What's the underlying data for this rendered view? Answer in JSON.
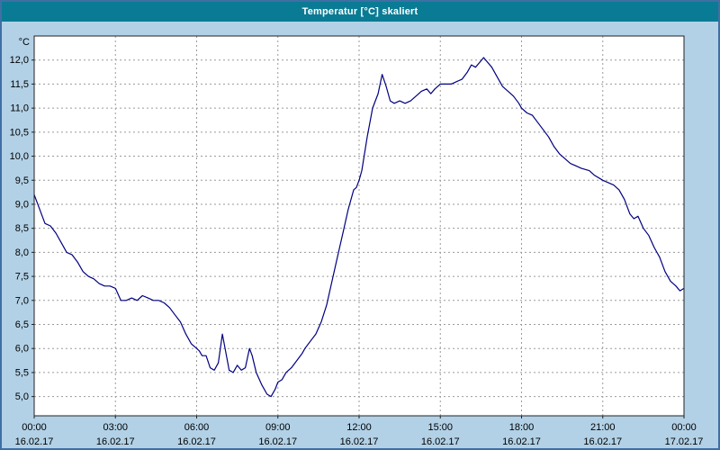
{
  "window": {
    "title": "Temperatur [°C] skaliert",
    "title_bar_color": "#0a7b94",
    "body_color": "#b2d1e6",
    "border_color": "#3f6fa5"
  },
  "chart_data": {
    "type": "line",
    "title": "Temperatur [°C] skaliert",
    "ylabel": "°C",
    "xlabel": "",
    "ylim": [
      4.6,
      12.5
    ],
    "xlim_hours": [
      0,
      24
    ],
    "grid": "dashed",
    "legend": "none",
    "line_color": "#000080",
    "plot_bg": "#ffffff",
    "grid_color": "#9a9a9a",
    "y_ticks": [
      {
        "value": 5.0,
        "label": "5,0"
      },
      {
        "value": 5.5,
        "label": "5,5"
      },
      {
        "value": 6.0,
        "label": "6,0"
      },
      {
        "value": 6.5,
        "label": "6,5"
      },
      {
        "value": 7.0,
        "label": "7,0"
      },
      {
        "value": 7.5,
        "label": "7,5"
      },
      {
        "value": 8.0,
        "label": "8,0"
      },
      {
        "value": 8.5,
        "label": "8,5"
      },
      {
        "value": 9.0,
        "label": "9,0"
      },
      {
        "value": 9.5,
        "label": "9,5"
      },
      {
        "value": 10.0,
        "label": "10,0"
      },
      {
        "value": 10.5,
        "label": "10,5"
      },
      {
        "value": 11.0,
        "label": "11,0"
      },
      {
        "value": 11.5,
        "label": "11,5"
      },
      {
        "value": 12.0,
        "label": "12,0"
      }
    ],
    "x_ticks": [
      {
        "hour": 0,
        "time": "00:00",
        "date": "16.02.17"
      },
      {
        "hour": 3,
        "time": "03:00",
        "date": "16.02.17"
      },
      {
        "hour": 6,
        "time": "06:00",
        "date": "16.02.17"
      },
      {
        "hour": 9,
        "time": "09:00",
        "date": "16.02.17"
      },
      {
        "hour": 12,
        "time": "12:00",
        "date": "16.02.17"
      },
      {
        "hour": 15,
        "time": "15:00",
        "date": "16.02.17"
      },
      {
        "hour": 18,
        "time": "18:00",
        "date": "16.02.17"
      },
      {
        "hour": 21,
        "time": "21:00",
        "date": "16.02.17"
      },
      {
        "hour": 24,
        "time": "00:00",
        "date": "17.02.17"
      }
    ],
    "series": [
      {
        "name": "Temperatur [°C] skaliert",
        "points": [
          [
            0.0,
            9.2
          ],
          [
            0.2,
            8.9
          ],
          [
            0.4,
            8.6
          ],
          [
            0.6,
            8.55
          ],
          [
            0.8,
            8.4
          ],
          [
            1.0,
            8.2
          ],
          [
            1.2,
            8.0
          ],
          [
            1.4,
            7.95
          ],
          [
            1.6,
            7.8
          ],
          [
            1.8,
            7.6
          ],
          [
            2.0,
            7.5
          ],
          [
            2.2,
            7.45
          ],
          [
            2.4,
            7.35
          ],
          [
            2.6,
            7.3
          ],
          [
            2.8,
            7.3
          ],
          [
            3.0,
            7.25
          ],
          [
            3.2,
            7.0
          ],
          [
            3.4,
            7.0
          ],
          [
            3.6,
            7.05
          ],
          [
            3.8,
            7.0
          ],
          [
            4.0,
            7.1
          ],
          [
            4.2,
            7.05
          ],
          [
            4.4,
            7.0
          ],
          [
            4.6,
            7.0
          ],
          [
            4.8,
            6.95
          ],
          [
            5.0,
            6.85
          ],
          [
            5.2,
            6.7
          ],
          [
            5.4,
            6.55
          ],
          [
            5.6,
            6.3
          ],
          [
            5.8,
            6.1
          ],
          [
            6.0,
            6.0
          ],
          [
            6.1,
            5.95
          ],
          [
            6.2,
            5.85
          ],
          [
            6.35,
            5.85
          ],
          [
            6.5,
            5.6
          ],
          [
            6.65,
            5.55
          ],
          [
            6.8,
            5.7
          ],
          [
            6.95,
            6.3
          ],
          [
            7.05,
            6.0
          ],
          [
            7.2,
            5.55
          ],
          [
            7.35,
            5.5
          ],
          [
            7.5,
            5.65
          ],
          [
            7.65,
            5.55
          ],
          [
            7.8,
            5.6
          ],
          [
            7.95,
            6.0
          ],
          [
            8.05,
            5.85
          ],
          [
            8.2,
            5.5
          ],
          [
            8.4,
            5.25
          ],
          [
            8.6,
            5.05
          ],
          [
            8.75,
            5.0
          ],
          [
            8.9,
            5.15
          ],
          [
            9.0,
            5.3
          ],
          [
            9.15,
            5.35
          ],
          [
            9.3,
            5.5
          ],
          [
            9.5,
            5.6
          ],
          [
            9.7,
            5.75
          ],
          [
            9.9,
            5.9
          ],
          [
            10.0,
            6.0
          ],
          [
            10.2,
            6.15
          ],
          [
            10.4,
            6.3
          ],
          [
            10.6,
            6.55
          ],
          [
            10.8,
            6.9
          ],
          [
            11.0,
            7.4
          ],
          [
            11.2,
            7.9
          ],
          [
            11.4,
            8.4
          ],
          [
            11.6,
            8.9
          ],
          [
            11.8,
            9.3
          ],
          [
            11.9,
            9.35
          ],
          [
            12.0,
            9.5
          ],
          [
            12.1,
            9.7
          ],
          [
            12.3,
            10.4
          ],
          [
            12.5,
            11.0
          ],
          [
            12.7,
            11.3
          ],
          [
            12.85,
            11.7
          ],
          [
            13.0,
            11.45
          ],
          [
            13.15,
            11.15
          ],
          [
            13.3,
            11.1
          ],
          [
            13.5,
            11.15
          ],
          [
            13.7,
            11.1
          ],
          [
            13.9,
            11.15
          ],
          [
            14.1,
            11.25
          ],
          [
            14.3,
            11.35
          ],
          [
            14.5,
            11.4
          ],
          [
            14.65,
            11.3
          ],
          [
            14.8,
            11.4
          ],
          [
            15.0,
            11.5
          ],
          [
            15.2,
            11.5
          ],
          [
            15.4,
            11.5
          ],
          [
            15.6,
            11.55
          ],
          [
            15.8,
            11.6
          ],
          [
            16.0,
            11.75
          ],
          [
            16.15,
            11.9
          ],
          [
            16.3,
            11.85
          ],
          [
            16.45,
            11.95
          ],
          [
            16.6,
            12.05
          ],
          [
            16.75,
            11.95
          ],
          [
            16.9,
            11.85
          ],
          [
            17.1,
            11.65
          ],
          [
            17.3,
            11.45
          ],
          [
            17.5,
            11.35
          ],
          [
            17.7,
            11.25
          ],
          [
            17.9,
            11.1
          ],
          [
            18.0,
            11.0
          ],
          [
            18.2,
            10.9
          ],
          [
            18.4,
            10.85
          ],
          [
            18.6,
            10.7
          ],
          [
            18.8,
            10.55
          ],
          [
            19.0,
            10.4
          ],
          [
            19.2,
            10.2
          ],
          [
            19.4,
            10.05
          ],
          [
            19.6,
            9.95
          ],
          [
            19.8,
            9.85
          ],
          [
            20.0,
            9.8
          ],
          [
            20.2,
            9.75
          ],
          [
            20.5,
            9.7
          ],
          [
            20.7,
            9.6
          ],
          [
            21.0,
            9.5
          ],
          [
            21.2,
            9.45
          ],
          [
            21.4,
            9.4
          ],
          [
            21.6,
            9.3
          ],
          [
            21.8,
            9.1
          ],
          [
            22.0,
            8.8
          ],
          [
            22.15,
            8.7
          ],
          [
            22.3,
            8.75
          ],
          [
            22.5,
            8.5
          ],
          [
            22.7,
            8.35
          ],
          [
            22.9,
            8.1
          ],
          [
            23.1,
            7.9
          ],
          [
            23.3,
            7.6
          ],
          [
            23.5,
            7.4
          ],
          [
            23.7,
            7.3
          ],
          [
            23.85,
            7.2
          ],
          [
            24.0,
            7.25
          ]
        ]
      }
    ]
  }
}
